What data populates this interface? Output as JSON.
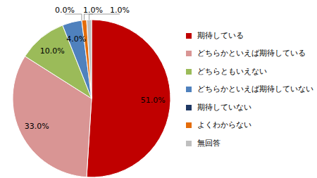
{
  "chart_data": {
    "type": "pie",
    "categories": [
      "期待している",
      "どちらかといえば期待している",
      "どちらともいえない",
      "どちらかといえば期待していない",
      "期待していない",
      "よくわからない",
      "無回答"
    ],
    "values": [
      51.0,
      33.0,
      10.0,
      4.0,
      0.0,
      1.0,
      1.0
    ],
    "value_labels": [
      "51.0%",
      "33.0%",
      "10.0%",
      "4.0%",
      "0.0%",
      "1.0%",
      "1.0%"
    ],
    "colors": [
      "#c00000",
      "#d99594",
      "#9bbb59",
      "#4f81bd",
      "#1f3864",
      "#e46c0a",
      "#bfbfbf"
    ],
    "data_labels": true,
    "legend": "right"
  }
}
